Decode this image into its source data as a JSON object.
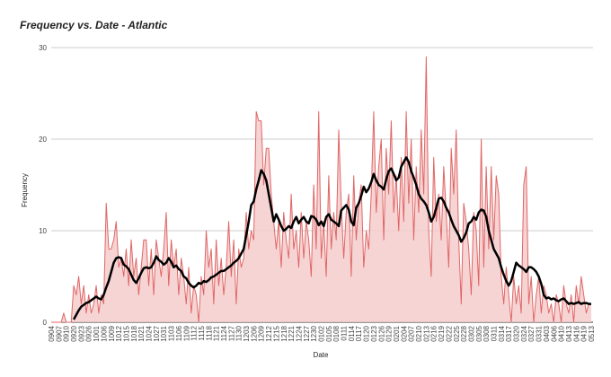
{
  "chart_data": {
    "type": "line",
    "title": "Frequency vs. Date - Atlantic",
    "xlabel": "Date",
    "ylabel": "Frequency",
    "ylim": [
      0,
      30
    ],
    "yticks": [
      0,
      10,
      20,
      30
    ],
    "grid": true,
    "categories": [
      "0904",
      null,
      null,
      "0907",
      null,
      null,
      "0910",
      null,
      null,
      "0920",
      null,
      null,
      "0923",
      null,
      null,
      "0926",
      null,
      null,
      "1001",
      null,
      null,
      "1006",
      null,
      null,
      "1009",
      null,
      null,
      "1012",
      null,
      null,
      "1015",
      null,
      null,
      "1018",
      null,
      null,
      "1021",
      null,
      null,
      "1024",
      null,
      null,
      "1027",
      null,
      null,
      "1031",
      null,
      null,
      "1103",
      null,
      null,
      "1106",
      null,
      null,
      "1109",
      null,
      null,
      "1112",
      null,
      null,
      "1115",
      null,
      null,
      "1118",
      null,
      null,
      "1121",
      null,
      null,
      "1124",
      null,
      null,
      "1127",
      null,
      null,
      "1130",
      null,
      null,
      "1203",
      null,
      null,
      "1206",
      null,
      null,
      "1209",
      null,
      null,
      "1212",
      null,
      null,
      "1215",
      null,
      null,
      "1218",
      null,
      null,
      "1221",
      null,
      null,
      "1224",
      null,
      null,
      "1227",
      null,
      null,
      "1230",
      null,
      null,
      "0102",
      null,
      null,
      "0105",
      null,
      null,
      "0108",
      null,
      null,
      "0111",
      null,
      null,
      "0114",
      null,
      null,
      "0117",
      null,
      null,
      "0120",
      null,
      null,
      "0123",
      null,
      null,
      "0126",
      null,
      null,
      "0129",
      null,
      null,
      "0201",
      null,
      null,
      "0204",
      null,
      null,
      "0207",
      null,
      null,
      "0210",
      null,
      null,
      "0213",
      null,
      null,
      "0216",
      null,
      null,
      "0219",
      null,
      null,
      "0222",
      null,
      null,
      "0225",
      null,
      null,
      "0228",
      null,
      null,
      "0302",
      null,
      null,
      "0305",
      null,
      null,
      "0308",
      null,
      null,
      "0311",
      null,
      null,
      "0314",
      null,
      null,
      "0317",
      null,
      null,
      "0320",
      null,
      null,
      "0324",
      null,
      null,
      "0327",
      null,
      null,
      "0331",
      null,
      null,
      "0403",
      null,
      null,
      "0406",
      null,
      null,
      "0410",
      null,
      null,
      "0413",
      null,
      null,
      "0416",
      null,
      null,
      "0419",
      null,
      null,
      "0513"
    ],
    "series": [
      {
        "color": "#e06666",
        "fill": "#f4cccc",
        "values": [
          0,
          0,
          0,
          0,
          0,
          1,
          0,
          0,
          0,
          4,
          3,
          5,
          2,
          4,
          1,
          3,
          1,
          2,
          4,
          1,
          3,
          2,
          13,
          8,
          8,
          9,
          11,
          6,
          7,
          5,
          8,
          4,
          9,
          5,
          7,
          3,
          6,
          9,
          9,
          4,
          8,
          3,
          9,
          7,
          5,
          8,
          12,
          4,
          9,
          6,
          8,
          3,
          7,
          5,
          2,
          6,
          1,
          4,
          3,
          0,
          5,
          3,
          10,
          6,
          8,
          2,
          9,
          4,
          7,
          3,
          6,
          11,
          5,
          9,
          2,
          8,
          6,
          7,
          12,
          8,
          10,
          9,
          23,
          22,
          22,
          15,
          19,
          19,
          14,
          11,
          8,
          11,
          6,
          12,
          9,
          7,
          14,
          8,
          10,
          6,
          12,
          7,
          11,
          9,
          5,
          15,
          8,
          23,
          7,
          11,
          5,
          16,
          8,
          12,
          9,
          21,
          13,
          7,
          12,
          14,
          5,
          16,
          9,
          13,
          15,
          6,
          10,
          8,
          14,
          23,
          12,
          17,
          20,
          9,
          19,
          14,
          22,
          12,
          16,
          10,
          18,
          11,
          23,
          13,
          20,
          9,
          17,
          12,
          21,
          14,
          29,
          10,
          5,
          18,
          11,
          14,
          9,
          17,
          12,
          6,
          19,
          14,
          21,
          9,
          2,
          13,
          11,
          8,
          3,
          12,
          10,
          4,
          20,
          6,
          17,
          8,
          17,
          9,
          16,
          14,
          5,
          2,
          6,
          3,
          0,
          5,
          2,
          4,
          1,
          15,
          17,
          2,
          5,
          0,
          3,
          5,
          1,
          4,
          3,
          1,
          2,
          0,
          3,
          2,
          0,
          4,
          2,
          1,
          3,
          0,
          4,
          2,
          5,
          3,
          1,
          2,
          2
        ]
      },
      {
        "color": "#000000",
        "values": [
          null,
          null,
          null,
          null,
          null,
          null,
          null,
          null,
          null,
          0.3,
          0.8,
          1.3,
          1.7,
          1.9,
          2.1,
          2.2,
          2.4,
          2.6,
          2.8,
          2.6,
          2.5,
          3.0,
          3.8,
          4.5,
          5.5,
          6.5,
          7.0,
          7.1,
          7.0,
          6.3,
          6.1,
          5.8,
          5.2,
          4.6,
          4.3,
          4.8,
          5.4,
          5.9,
          6.0,
          5.9,
          6.0,
          6.5,
          7.2,
          6.8,
          6.6,
          6.3,
          6.5,
          7.0,
          6.6,
          6.0,
          6.2,
          5.8,
          5.6,
          5.0,
          4.8,
          4.3,
          4.0,
          3.8,
          4.0,
          4.3,
          4.2,
          4.5,
          4.4,
          4.6,
          4.9,
          5.0,
          5.2,
          5.4,
          5.6,
          5.6,
          5.8,
          6.0,
          6.2,
          6.5,
          6.7,
          7.0,
          7.5,
          8.0,
          9.5,
          11.0,
          12.8,
          13.2,
          14.5,
          15.5,
          16.6,
          16.2,
          15.5,
          14.0,
          12.5,
          11.0,
          11.8,
          11.2,
          10.5,
          10.0,
          10.2,
          10.5,
          10.3,
          11.0,
          11.5,
          10.8,
          11.2,
          11.5,
          11.0,
          10.8,
          11.6,
          11.5,
          11.2,
          10.6,
          11.0,
          10.5,
          11.5,
          11.8,
          11.2,
          11.0,
          10.8,
          10.5,
          12.2,
          12.5,
          12.8,
          12.3,
          11.0,
          10.6,
          12.5,
          13.0,
          13.8,
          14.8,
          14.2,
          14.6,
          15.3,
          16.2,
          15.5,
          15.0,
          14.8,
          14.5,
          15.6,
          16.5,
          16.8,
          16.2,
          15.5,
          15.8,
          17.0,
          17.5,
          18.0,
          17.5,
          16.5,
          15.8,
          15.0,
          14.0,
          13.5,
          13.2,
          12.8,
          12.0,
          11.0,
          11.5,
          12.5,
          13.5,
          13.6,
          13.2,
          12.5,
          12.0,
          11.2,
          10.5,
          10.0,
          9.5,
          8.8,
          9.2,
          9.8,
          10.8,
          11.0,
          11.5,
          11.2,
          12.0,
          12.3,
          12.2,
          11.5,
          10.0,
          9.0,
          8.0,
          7.5,
          7.0,
          6.0,
          5.2,
          4.5,
          4.0,
          4.5,
          5.5,
          6.5,
          6.2,
          6.0,
          5.8,
          5.5,
          6.0,
          6.0,
          5.8,
          5.5,
          5.0,
          4.2,
          3.0,
          2.6,
          2.7,
          2.5,
          2.6,
          2.4,
          2.3,
          2.5,
          2.6,
          2.3,
          2.0,
          2.1,
          2.0,
          2.1,
          2.2,
          2.0,
          2.1,
          2.1,
          2.0,
          2.0
        ]
      }
    ]
  }
}
